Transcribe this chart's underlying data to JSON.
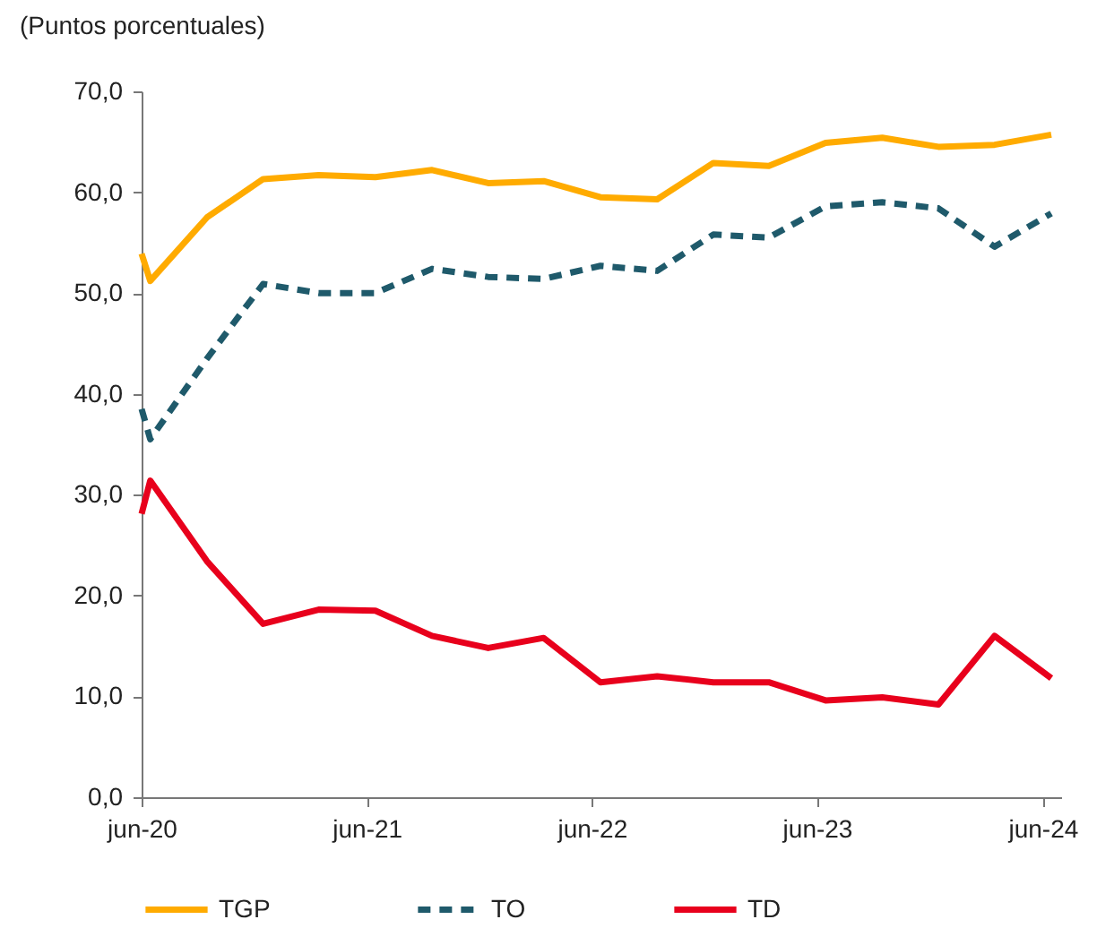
{
  "chart_data": {
    "type": "line",
    "subtitle": "(Puntos porcentuales)",
    "x": [
      "2020-06-01",
      "2020-06-15",
      "2020-09-15",
      "2020-12-15",
      "2021-03-15",
      "2021-06-15",
      "2021-09-15",
      "2021-12-15",
      "2022-03-15",
      "2022-06-15",
      "2022-09-15",
      "2022-12-15",
      "2023-03-15",
      "2023-06-15",
      "2023-09-15",
      "2023-12-15",
      "2024-03-15",
      "2024-06-15"
    ],
    "series": [
      {
        "name": "TGP",
        "color": "#ffab00",
        "line_style": "solid",
        "values": [
          53.9,
          51.2,
          57.5,
          61.3,
          61.7,
          61.5,
          62.2,
          60.9,
          61.1,
          59.5,
          59.3,
          62.9,
          62.6,
          64.9,
          65.4,
          64.5,
          64.7,
          65.7
        ]
      },
      {
        "name": "TO",
        "color": "#1f5a6b",
        "line_style": "dashed",
        "values": [
          38.5,
          35.5,
          43.5,
          50.9,
          50.0,
          50.0,
          52.4,
          51.6,
          51.4,
          52.7,
          52.2,
          55.8,
          55.5,
          58.6,
          59.0,
          58.4,
          54.6,
          57.9
        ]
      },
      {
        "name": "TD",
        "color": "#e8001c",
        "line_style": "solid",
        "values": [
          28.1,
          31.4,
          23.4,
          17.2,
          18.6,
          18.5,
          16.0,
          14.8,
          15.8,
          11.4,
          12.0,
          11.4,
          11.4,
          9.6,
          9.9,
          9.2,
          16.0,
          11.8
        ]
      }
    ],
    "xlim": [
      "2020-06-01",
      "2024-07-01"
    ],
    "xticks": [
      {
        "value": "2020-06",
        "label": "jun-20"
      },
      {
        "value": "2021-06",
        "label": "jun-21"
      },
      {
        "value": "2022-06",
        "label": "jun-22"
      },
      {
        "value": "2023-06",
        "label": "jun-23"
      },
      {
        "value": "2024-06",
        "label": "jun-24"
      }
    ],
    "ylim": [
      0,
      70
    ],
    "yticks": [
      {
        "value": 0,
        "label": "0,0"
      },
      {
        "value": 10,
        "label": "10,0"
      },
      {
        "value": 20,
        "label": "20,0"
      },
      {
        "value": 30,
        "label": "30,0"
      },
      {
        "value": 40,
        "label": "40,0"
      },
      {
        "value": 50,
        "label": "50,0"
      },
      {
        "value": 60,
        "label": "60,0"
      },
      {
        "value": 70,
        "label": "70,0"
      }
    ],
    "grid": false,
    "legend": "bottom"
  }
}
